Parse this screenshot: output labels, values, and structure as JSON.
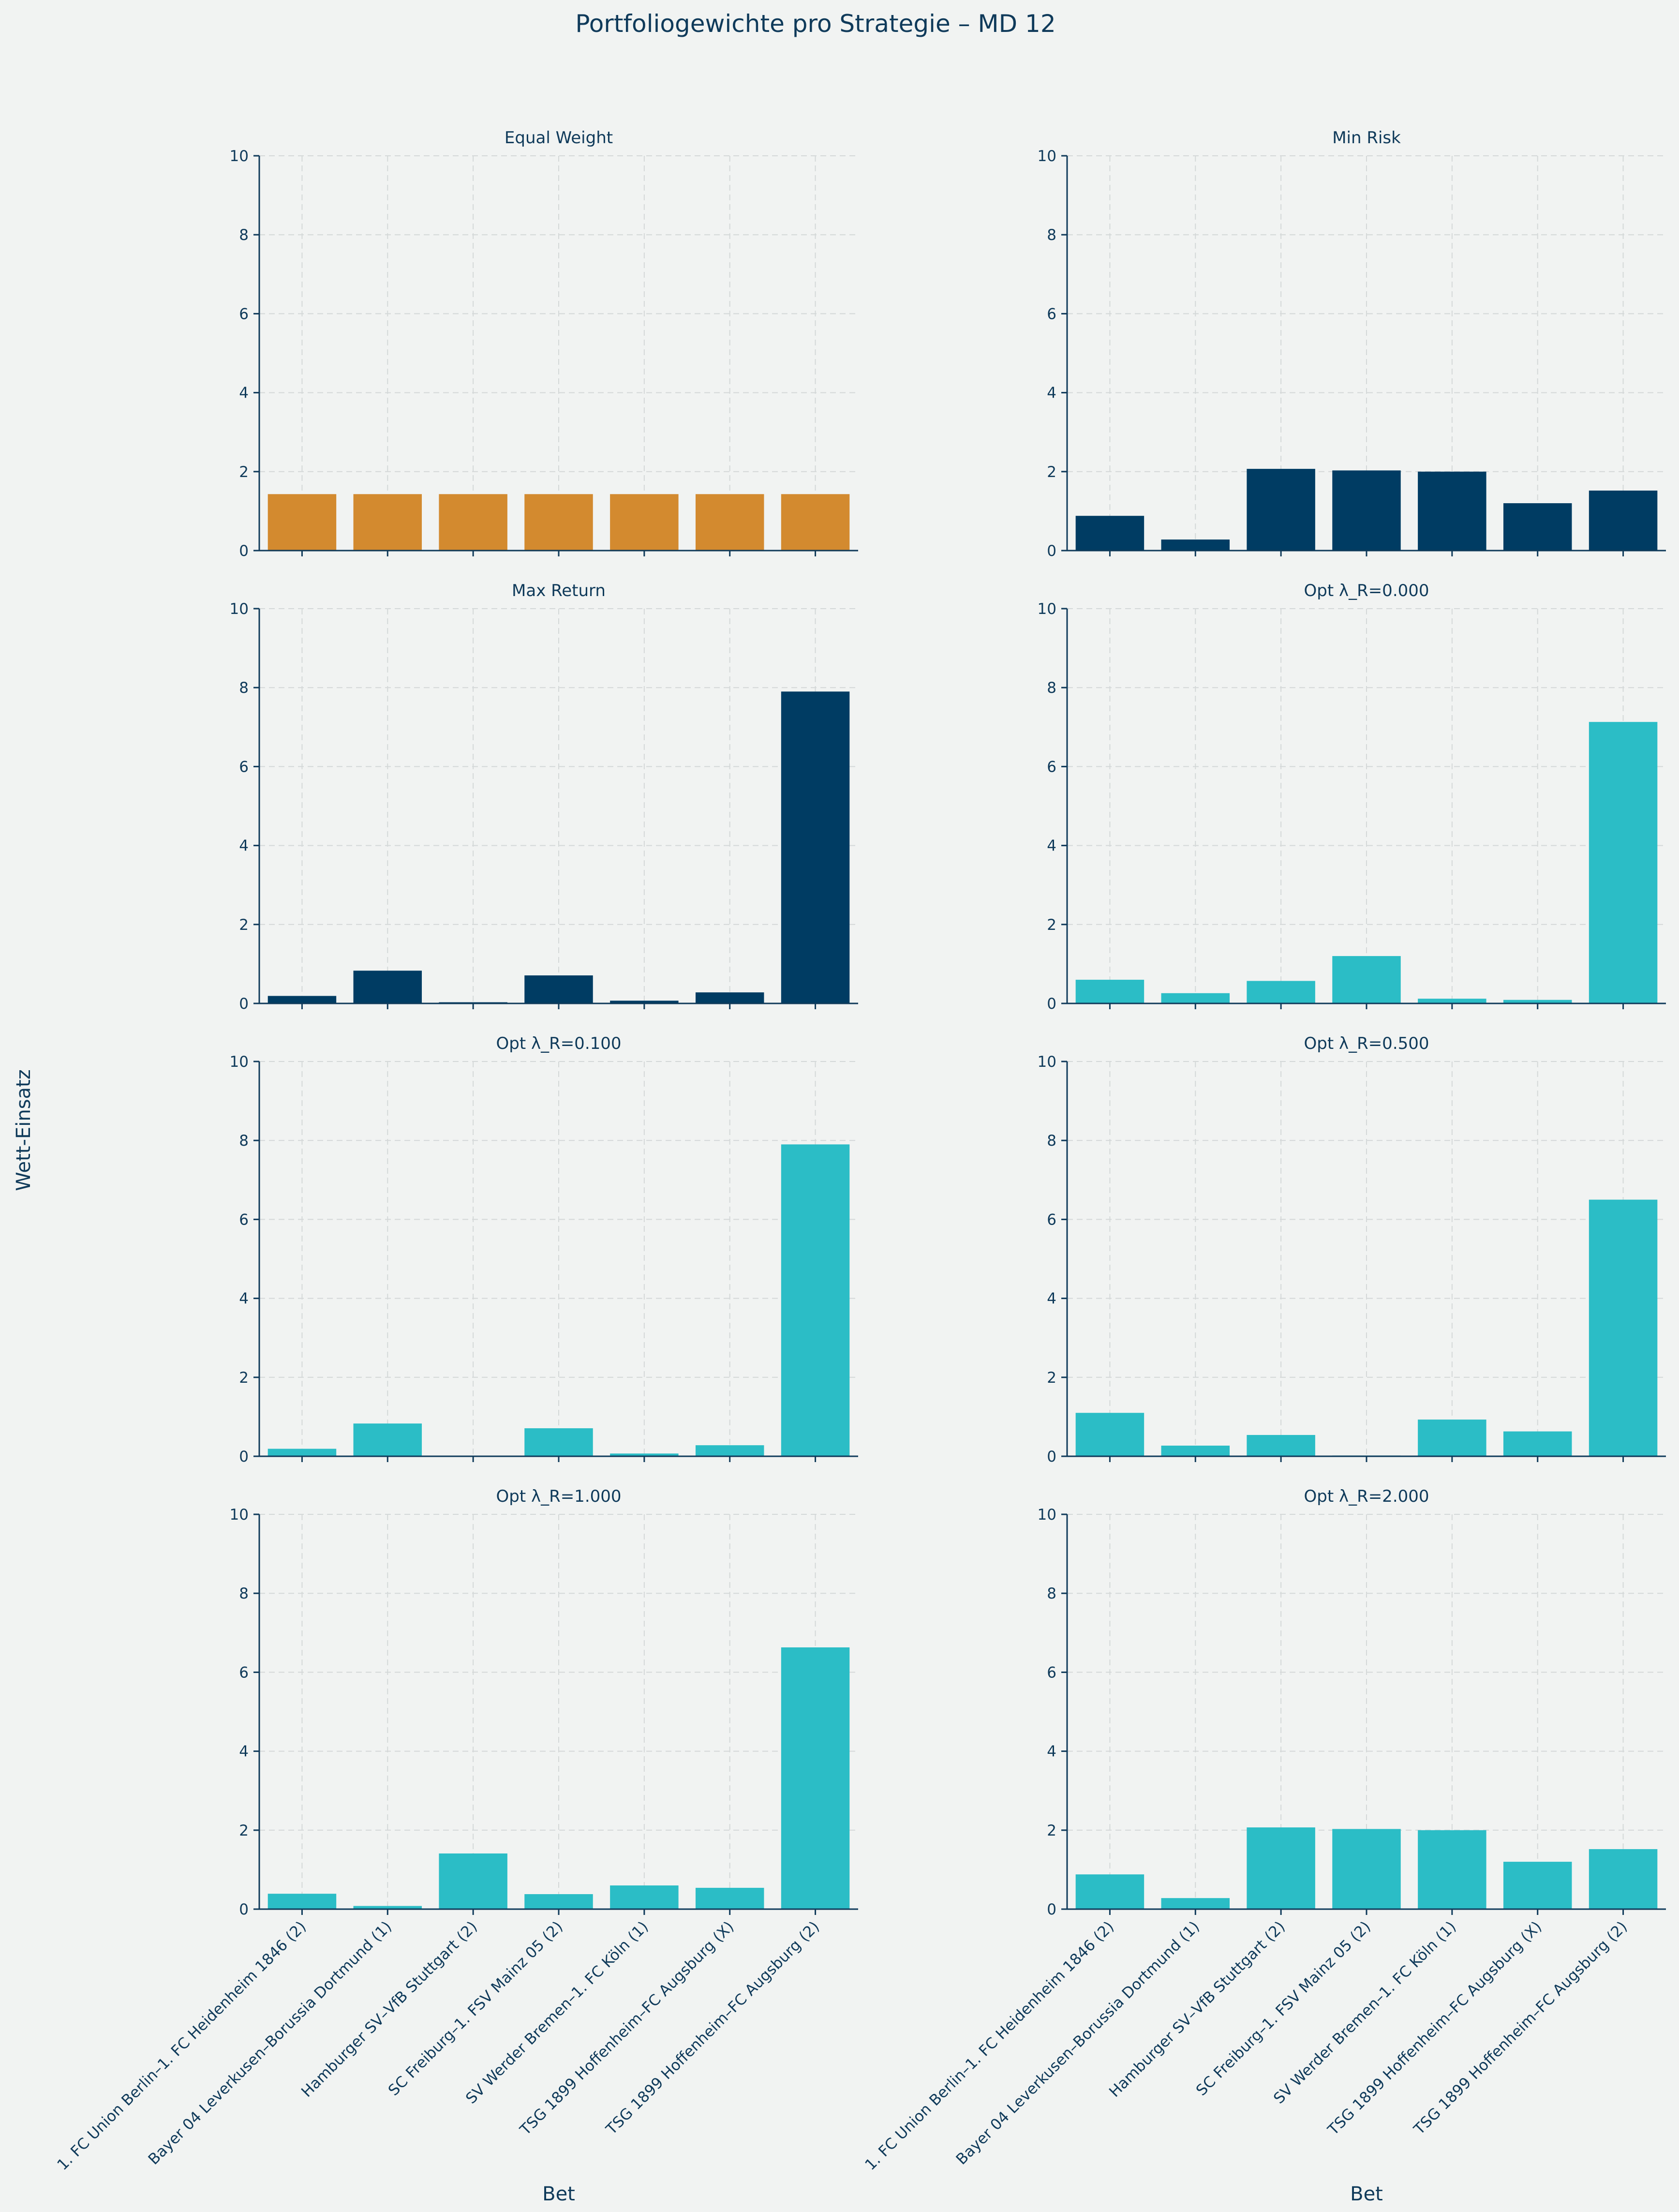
{
  "chart_data": {
    "type": "bar",
    "title": "Portfoliogewichte pro Strategie – MD 12",
    "xlabel": "Bet",
    "ylabel": "Wett-Einsatz",
    "ylim": [
      0,
      10
    ],
    "yticks": [
      0,
      2,
      4,
      6,
      8,
      10
    ],
    "grid": true,
    "categories": [
      "1. FC Union Berlin–1. FC Heidenheim 1846 (2)",
      "Bayer 04 Leverkusen–Borussia Dortmund (1)",
      "Hamburger SV–VfB Stuttgart (2)",
      "SC Freiburg–1. FSV Mainz 05 (2)",
      "SV Werder Bremen–1. FC Köln (1)",
      "TSG 1899 Hoffenheim–FC Augsburg (X)",
      "TSG 1899 Hoffenheim–FC Augsburg (2)"
    ],
    "panels": [
      {
        "title": "Equal Weight",
        "color": "#d38a2f",
        "values": [
          1.43,
          1.43,
          1.43,
          1.43,
          1.43,
          1.43,
          1.43
        ]
      },
      {
        "title": "Min Risk",
        "color": "#003c63",
        "values": [
          0.88,
          0.28,
          2.07,
          2.03,
          2.0,
          1.2,
          1.52
        ]
      },
      {
        "title": "Max Return",
        "color": "#003c63",
        "values": [
          0.19,
          0.83,
          0.03,
          0.71,
          0.07,
          0.28,
          7.9
        ]
      },
      {
        "title": "Opt λ_R=0.000",
        "color": "#2bbdc6",
        "values": [
          0.6,
          0.26,
          0.57,
          1.2,
          0.12,
          0.09,
          7.13
        ]
      },
      {
        "title": "Opt λ_R=0.100",
        "color": "#2bbdc6",
        "values": [
          0.19,
          0.83,
          0.0,
          0.71,
          0.07,
          0.28,
          7.9
        ]
      },
      {
        "title": "Opt λ_R=0.500",
        "color": "#2bbdc6",
        "values": [
          1.1,
          0.27,
          0.54,
          0.02,
          0.93,
          0.63,
          6.5
        ]
      },
      {
        "title": "Opt λ_R=1.000",
        "color": "#2bbdc6",
        "values": [
          0.39,
          0.08,
          1.41,
          0.38,
          0.6,
          0.54,
          6.63
        ]
      },
      {
        "title": "Opt λ_R=2.000",
        "color": "#2bbdc6",
        "values": [
          0.88,
          0.28,
          2.07,
          2.03,
          2.0,
          1.2,
          1.52
        ]
      }
    ]
  }
}
